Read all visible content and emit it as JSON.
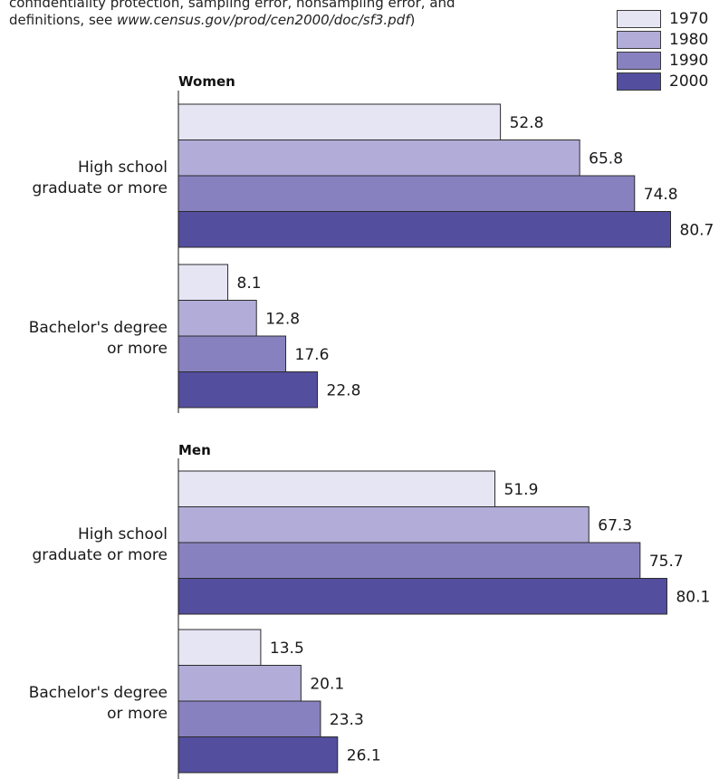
{
  "note": {
    "line1": "confidentiality protection, sampling error, nonsampling error, and",
    "line2_prefix": "definitions, see ",
    "line2_url": "www.census.gov/prod/cen2000/doc/sf3.pdf",
    "line2_suffix": ")"
  },
  "colors": {
    "1970": "#e6e5f4",
    "1980": "#b1acd8",
    "1990": "#8881c0",
    "2000": "#534e9e",
    "outline": "#2b2b2b"
  },
  "chart_data": {
    "type": "bar",
    "orientation": "horizontal",
    "legend": [
      "1970",
      "1980",
      "1990",
      "2000"
    ],
    "legend_position": "top-right",
    "grid": false,
    "xlim": [
      0,
      100
    ],
    "panels": [
      {
        "title": "Women",
        "groups": [
          {
            "label_lines": [
              "High school",
              "graduate or more"
            ],
            "values": [
              52.8,
              65.8,
              74.8,
              80.7
            ]
          },
          {
            "label_lines": [
              "Bachelor's degree",
              "or more"
            ],
            "values": [
              8.1,
              12.8,
              17.6,
              22.8
            ]
          }
        ]
      },
      {
        "title": "Men",
        "groups": [
          {
            "label_lines": [
              "High school",
              "graduate or more"
            ],
            "values": [
              51.9,
              67.3,
              75.7,
              80.1
            ]
          },
          {
            "label_lines": [
              "Bachelor's degree",
              "or more"
            ],
            "values": [
              13.5,
              20.1,
              23.3,
              26.1
            ]
          }
        ]
      }
    ]
  }
}
